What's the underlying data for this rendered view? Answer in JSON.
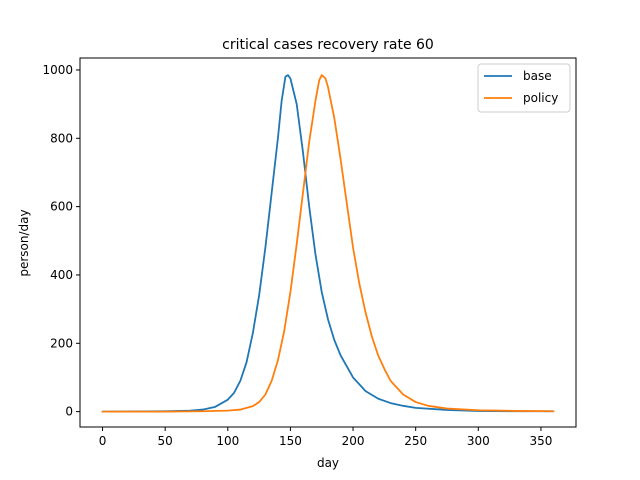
{
  "chart_data": {
    "type": "line",
    "title": "critical cases recovery rate 60",
    "xlabel": "day",
    "ylabel": "person/day",
    "xlim": [
      -18,
      378
    ],
    "ylim": [
      -45,
      1035
    ],
    "xticks": [
      0,
      50,
      100,
      150,
      200,
      250,
      300,
      350
    ],
    "yticks": [
      0,
      200,
      400,
      600,
      800,
      1000
    ],
    "legend": {
      "position": "top-right"
    },
    "grid": false,
    "series": [
      {
        "name": "base",
        "color": "#1f77b4",
        "points": [
          [
            0,
            0
          ],
          [
            50,
            1
          ],
          [
            70,
            3
          ],
          [
            80,
            6
          ],
          [
            90,
            14
          ],
          [
            100,
            35
          ],
          [
            105,
            55
          ],
          [
            110,
            90
          ],
          [
            115,
            145
          ],
          [
            120,
            230
          ],
          [
            125,
            340
          ],
          [
            130,
            480
          ],
          [
            135,
            640
          ],
          [
            140,
            800
          ],
          [
            143,
            910
          ],
          [
            146,
            980
          ],
          [
            148,
            985
          ],
          [
            150,
            975
          ],
          [
            155,
            900
          ],
          [
            160,
            760
          ],
          [
            165,
            600
          ],
          [
            170,
            460
          ],
          [
            175,
            350
          ],
          [
            180,
            270
          ],
          [
            185,
            210
          ],
          [
            190,
            165
          ],
          [
            200,
            100
          ],
          [
            210,
            60
          ],
          [
            220,
            38
          ],
          [
            230,
            25
          ],
          [
            240,
            17
          ],
          [
            250,
            11
          ],
          [
            275,
            5
          ],
          [
            300,
            2
          ],
          [
            330,
            1
          ],
          [
            360,
            1
          ]
        ]
      },
      {
        "name": "policy",
        "color": "#ff7f0e",
        "points": [
          [
            0,
            0
          ],
          [
            50,
            0
          ],
          [
            80,
            1
          ],
          [
            100,
            3
          ],
          [
            110,
            6
          ],
          [
            120,
            16
          ],
          [
            125,
            28
          ],
          [
            130,
            50
          ],
          [
            135,
            90
          ],
          [
            140,
            150
          ],
          [
            145,
            235
          ],
          [
            150,
            350
          ],
          [
            155,
            490
          ],
          [
            160,
            640
          ],
          [
            165,
            790
          ],
          [
            170,
            910
          ],
          [
            173,
            970
          ],
          [
            175,
            985
          ],
          [
            178,
            975
          ],
          [
            180,
            950
          ],
          [
            185,
            860
          ],
          [
            190,
            740
          ],
          [
            195,
            610
          ],
          [
            200,
            480
          ],
          [
            205,
            375
          ],
          [
            210,
            290
          ],
          [
            215,
            220
          ],
          [
            220,
            165
          ],
          [
            225,
            125
          ],
          [
            230,
            90
          ],
          [
            240,
            50
          ],
          [
            250,
            28
          ],
          [
            260,
            17
          ],
          [
            275,
            9
          ],
          [
            300,
            4
          ],
          [
            330,
            2
          ],
          [
            360,
            1
          ]
        ]
      }
    ]
  }
}
